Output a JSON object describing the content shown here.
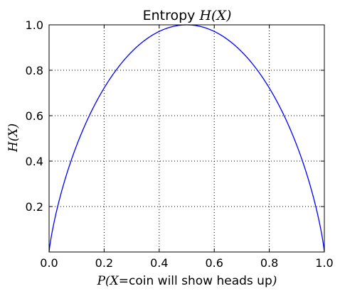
{
  "chart_data": {
    "type": "line",
    "title": {
      "prefix": "Entropy ",
      "math": "H(X)"
    },
    "xlabel": {
      "math_prefix": "P(X=",
      "text": "coin will show heads up",
      "math_suffix": ")"
    },
    "ylabel": "H(X)",
    "xlim": [
      0.0,
      1.0
    ],
    "ylim": [
      0.0,
      1.0
    ],
    "grid": true,
    "xticks": [
      "0.0",
      "0.2",
      "0.4",
      "0.6",
      "0.8",
      "1.0"
    ],
    "yticks": [
      "0.2",
      "0.4",
      "0.6",
      "0.8",
      "1.0"
    ],
    "series": [
      {
        "color": "#0000ff",
        "x": [
          0.0,
          0.01,
          0.025,
          0.05,
          0.075,
          0.1,
          0.15,
          0.2,
          0.25,
          0.3,
          0.35,
          0.4,
          0.45,
          0.5,
          0.55,
          0.6,
          0.65,
          0.7,
          0.75,
          0.8,
          0.85,
          0.9,
          0.925,
          0.95,
          0.975,
          0.99,
          1.0
        ],
        "y": [
          0.0,
          0.081,
          0.169,
          0.286,
          0.384,
          0.469,
          0.61,
          0.722,
          0.811,
          0.881,
          0.934,
          0.971,
          0.993,
          1.0,
          0.993,
          0.971,
          0.934,
          0.881,
          0.811,
          0.722,
          0.61,
          0.469,
          0.384,
          0.286,
          0.169,
          0.081,
          0.0
        ]
      }
    ]
  }
}
